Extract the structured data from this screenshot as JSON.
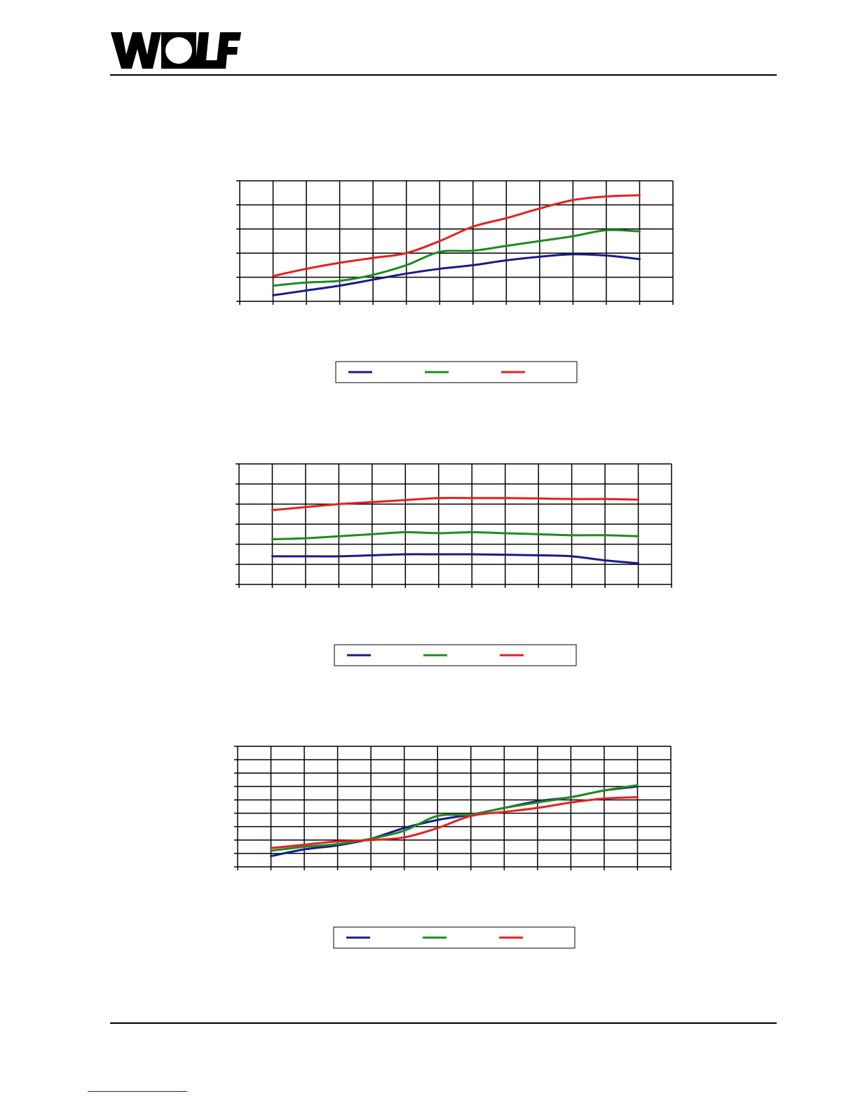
{
  "brand": {
    "logo_text": "WOLF",
    "logo_color": "#000000"
  },
  "series_colors": [
    "#1a1a8c",
    "#1e8c1e",
    "#e62020"
  ],
  "chart_data": [
    {
      "type": "line",
      "xlim": [
        0,
        13
      ],
      "ylim": [
        0,
        5
      ],
      "x": [
        1,
        2,
        3,
        4,
        5,
        6,
        7,
        8,
        9,
        10,
        11,
        12
      ],
      "grid": true,
      "legend": "bottom-center",
      "series": [
        {
          "values": [
            0.25,
            0.45,
            0.65,
            0.9,
            1.15,
            1.35,
            1.5,
            1.7,
            1.85,
            1.95,
            1.9,
            1.75
          ]
        },
        {
          "values": [
            0.65,
            0.78,
            0.85,
            1.1,
            1.5,
            2.05,
            2.1,
            2.3,
            2.5,
            2.7,
            2.95,
            2.9
          ]
        },
        {
          "values": [
            1.05,
            1.35,
            1.6,
            1.8,
            2.0,
            2.5,
            3.1,
            3.45,
            3.85,
            4.2,
            4.35,
            4.4
          ]
        }
      ]
    },
    {
      "type": "line",
      "xlim": [
        0,
        13
      ],
      "ylim": [
        0,
        6
      ],
      "x": [
        1,
        2,
        3,
        4,
        5,
        6,
        7,
        8,
        9,
        10,
        11,
        12
      ],
      "grid": true,
      "legend": "bottom-center",
      "series": [
        {
          "values": [
            1.4,
            1.4,
            1.4,
            1.45,
            1.5,
            1.5,
            1.5,
            1.48,
            1.45,
            1.4,
            1.2,
            1.05
          ]
        },
        {
          "values": [
            2.25,
            2.3,
            2.4,
            2.5,
            2.6,
            2.55,
            2.6,
            2.55,
            2.5,
            2.45,
            2.45,
            2.4
          ]
        },
        {
          "values": [
            3.7,
            3.85,
            4.0,
            4.1,
            4.2,
            4.3,
            4.3,
            4.3,
            4.28,
            4.25,
            4.25,
            4.22
          ]
        }
      ]
    },
    {
      "type": "line",
      "xlim": [
        0,
        13
      ],
      "ylim": [
        0,
        9
      ],
      "x": [
        1,
        2,
        3,
        4,
        5,
        6,
        7,
        8,
        9,
        10,
        11,
        12
      ],
      "grid": true,
      "legend": "bottom-center",
      "series": [
        {
          "values": [
            0.8,
            1.3,
            1.6,
            2.1,
            2.9,
            3.5,
            3.9,
            4.4,
            4.9,
            5.2,
            5.7,
            6.0
          ]
        },
        {
          "values": [
            1.2,
            1.5,
            1.7,
            2.1,
            2.7,
            3.8,
            3.9,
            4.4,
            4.8,
            5.2,
            5.7,
            6.1
          ]
        },
        {
          "values": [
            1.4,
            1.65,
            1.9,
            2.0,
            2.2,
            2.9,
            3.8,
            4.1,
            4.4,
            4.8,
            5.1,
            5.2
          ]
        }
      ]
    }
  ]
}
